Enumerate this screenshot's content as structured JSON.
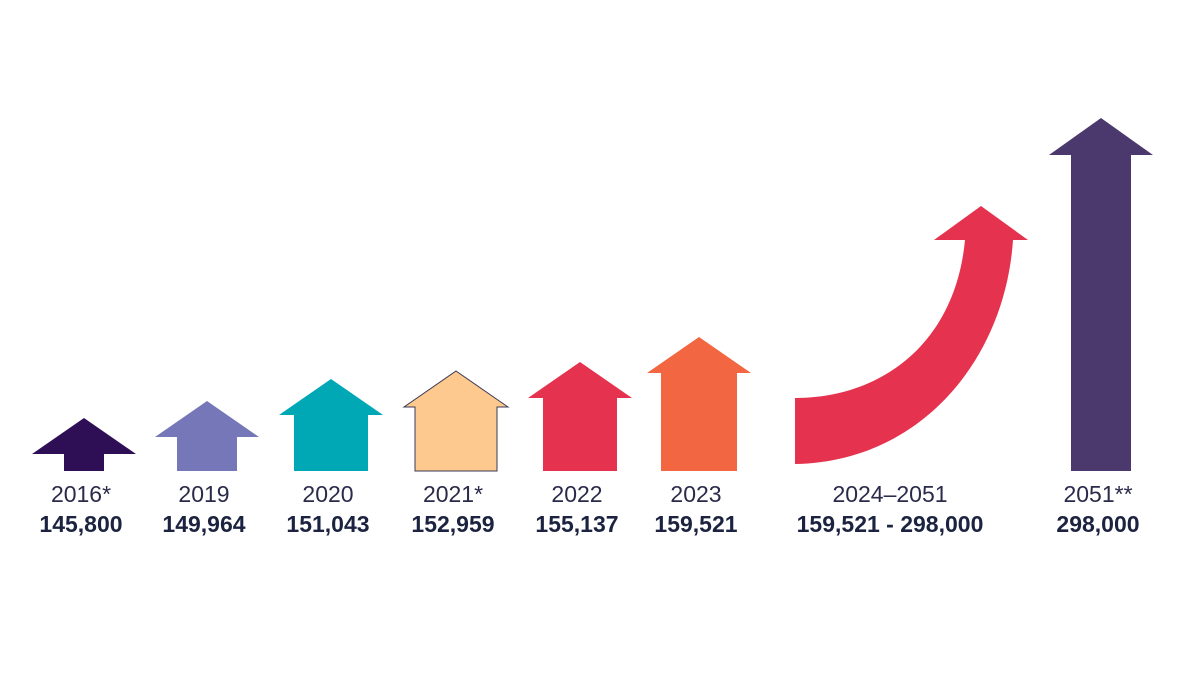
{
  "chart_data": {
    "type": "bar",
    "title": "",
    "xlabel": "",
    "ylabel": "",
    "categories": [
      "2016*",
      "2019",
      "2020",
      "2021*",
      "2022",
      "2023",
      "2024–2051",
      "2051**"
    ],
    "value_labels": [
      "145,800",
      "149,964",
      "151,043",
      "152,959",
      "155,137",
      "159,521",
      "159,521 - 298,000",
      "298,000"
    ],
    "values": [
      145800,
      149964,
      151043,
      152959,
      155137,
      159521,
      null,
      298000
    ],
    "range": {
      "category": "2024–2051",
      "from": 159521,
      "to": 298000
    },
    "colors": [
      "#2e0f55",
      "#7677b8",
      "#00a7b5",
      "#fdc98e",
      "#e5334f",
      "#f26641",
      "#e5334f",
      "#4b386c"
    ],
    "marker": "arrow",
    "grid": false,
    "legend": "none"
  }
}
